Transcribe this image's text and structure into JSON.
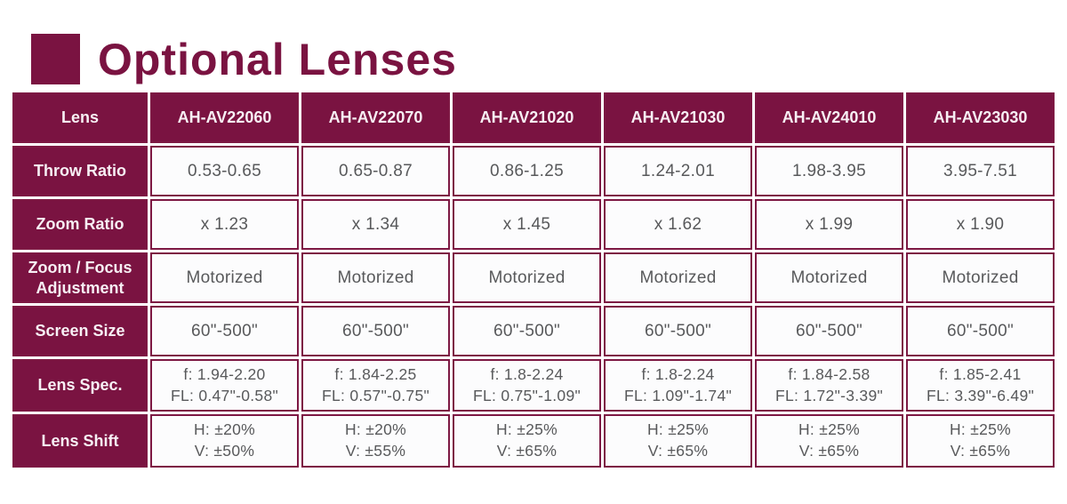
{
  "title": {
    "text": "Optional Lenses",
    "accent_color": "#7a1341"
  },
  "colors": {
    "maroon_fill": "#7a1341",
    "cell_border": "#7d1843",
    "data_text": "#58595b",
    "header_text": "#f7eff4"
  },
  "table": {
    "header": {
      "label": "Lens",
      "columns": [
        "AH-AV22060",
        "AH-AV22070",
        "AH-AV21020",
        "AH-AV21030",
        "AH-AV24010",
        "AH-AV23030"
      ]
    },
    "rows": [
      {
        "label": "Throw Ratio",
        "values": [
          "0.53-0.65",
          "0.65-0.87",
          "0.86-1.25",
          "1.24-2.01",
          "1.98-3.95",
          "3.95-7.51"
        ]
      },
      {
        "label": "Zoom Ratio",
        "values": [
          "x 1.23",
          "x 1.34",
          "x 1.45",
          "x 1.62",
          "x 1.99",
          "x 1.90"
        ]
      },
      {
        "label": "Zoom / Focus Adjustment",
        "values": [
          "Motorized",
          "Motorized",
          "Motorized",
          "Motorized",
          "Motorized",
          "Motorized"
        ]
      },
      {
        "label": "Screen Size",
        "values": [
          "60\"-500\"",
          "60\"-500\"",
          "60\"-500\"",
          "60\"-500\"",
          "60\"-500\"",
          "60\"-500\""
        ]
      },
      {
        "label": "Lens Spec.",
        "values": [
          [
            "f: 1.94-2.20",
            "FL: 0.47\"-0.58\""
          ],
          [
            "f: 1.84-2.25",
            "FL: 0.57\"-0.75\""
          ],
          [
            "f: 1.8-2.24",
            "FL: 0.75\"-1.09\""
          ],
          [
            "f: 1.8-2.24",
            "FL: 1.09\"-1.74\""
          ],
          [
            "f: 1.84-2.58",
            "FL: 1.72\"-3.39\""
          ],
          [
            "f: 1.85-2.41",
            "FL: 3.39\"-6.49\""
          ]
        ]
      },
      {
        "label": "Lens Shift",
        "values": [
          [
            "H: ±20%",
            "V: ±50%"
          ],
          [
            "H: ±20%",
            "V: ±55%"
          ],
          [
            "H: ±25%",
            "V: ±65%"
          ],
          [
            "H: ±25%",
            "V: ±65%"
          ],
          [
            "H: ±25%",
            "V: ±65%"
          ],
          [
            "H: ±25%",
            "V: ±65%"
          ]
        ]
      }
    ]
  }
}
